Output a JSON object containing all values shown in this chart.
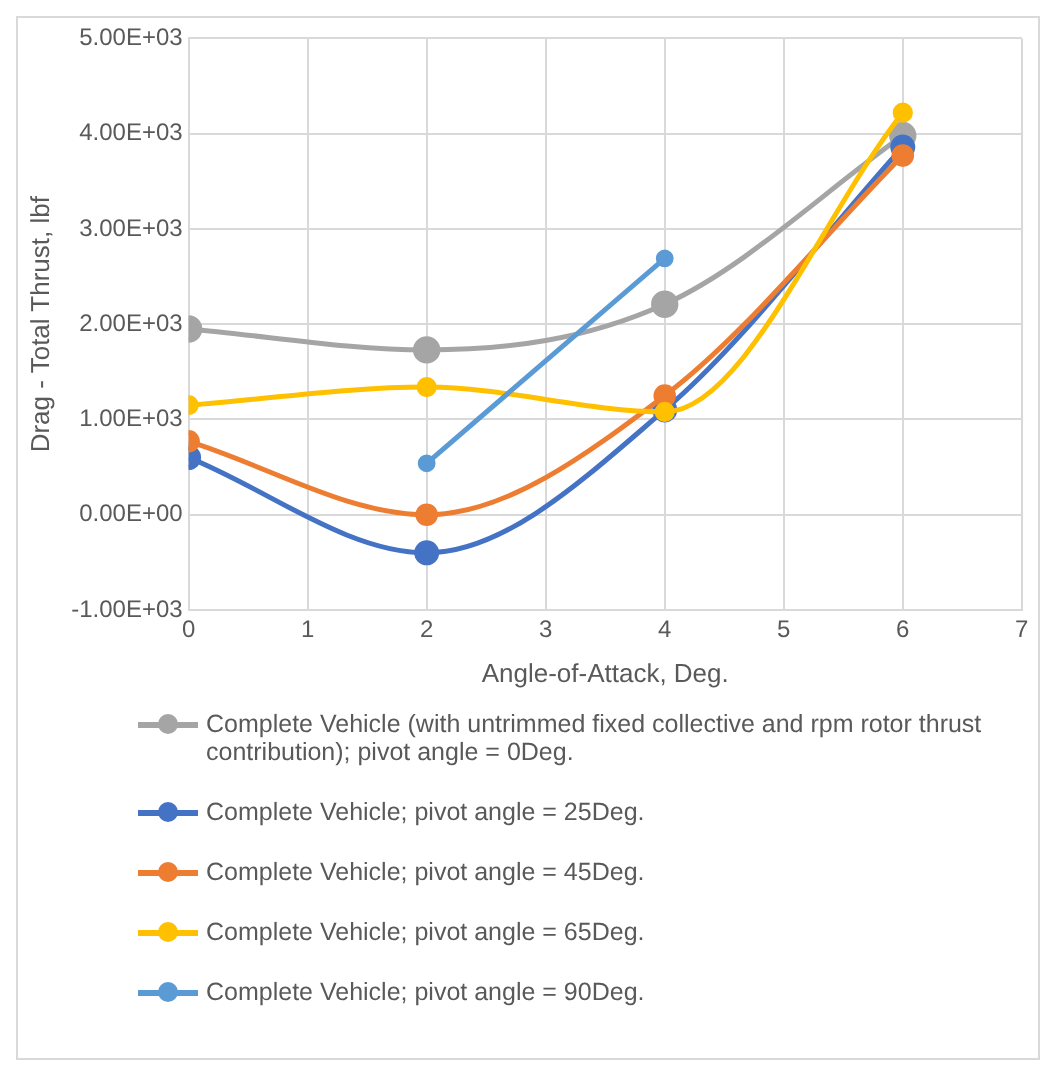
{
  "chart_data": {
    "type": "line",
    "xlabel": "Angle-of-Attack, Deg.",
    "ylabel": "Drag - Total Thrust, lbf",
    "xlim": [
      0,
      7
    ],
    "xticks": [
      0,
      1,
      2,
      3,
      4,
      5,
      6,
      7
    ],
    "ylim": [
      -1000,
      5000
    ],
    "yticks": [
      {
        "value": -1000,
        "label": "-1.00E+03"
      },
      {
        "value": 0,
        "label": "0.00E+00"
      },
      {
        "value": 1000,
        "label": "1.00E+03"
      },
      {
        "value": 2000,
        "label": "2.00E+03"
      },
      {
        "value": 3000,
        "label": "3.00E+03"
      },
      {
        "value": 4000,
        "label": "4.00E+03"
      },
      {
        "value": 5000,
        "label": "5.00E+03"
      }
    ],
    "grid": true,
    "legend": "bottom",
    "marker": "circle",
    "line_style": "solid",
    "series": [
      {
        "name": "Complete Vehicle (with untrimmed fixed collective and rpm rotor thrust contribution); pivot angle = 0Deg.",
        "color": "#a5a5a5",
        "x": [
          0,
          2,
          4,
          6
        ],
        "values": [
          1950,
          1730,
          2210,
          3980
        ]
      },
      {
        "name": "Complete Vehicle; pivot angle = 25Deg.",
        "color": "#4472c4",
        "x": [
          0,
          2,
          4,
          6
        ],
        "values": [
          600,
          -400,
          1100,
          3860
        ]
      },
      {
        "name": "Complete Vehicle; pivot angle = 45Deg.",
        "color": "#ed7d31",
        "x": [
          0,
          2,
          4,
          6
        ],
        "values": [
          770,
          0,
          1250,
          3770
        ]
      },
      {
        "name": "Complete Vehicle; pivot angle = 65Deg.",
        "color": "#ffc000",
        "x": [
          0,
          2,
          4,
          6
        ],
        "values": [
          1150,
          1340,
          1080,
          4220
        ]
      },
      {
        "name": "Complete Vehicle; pivot angle = 90Deg.",
        "color": "#5b9bd5",
        "x": [
          2,
          4
        ],
        "values": [
          540,
          2690
        ]
      }
    ]
  }
}
